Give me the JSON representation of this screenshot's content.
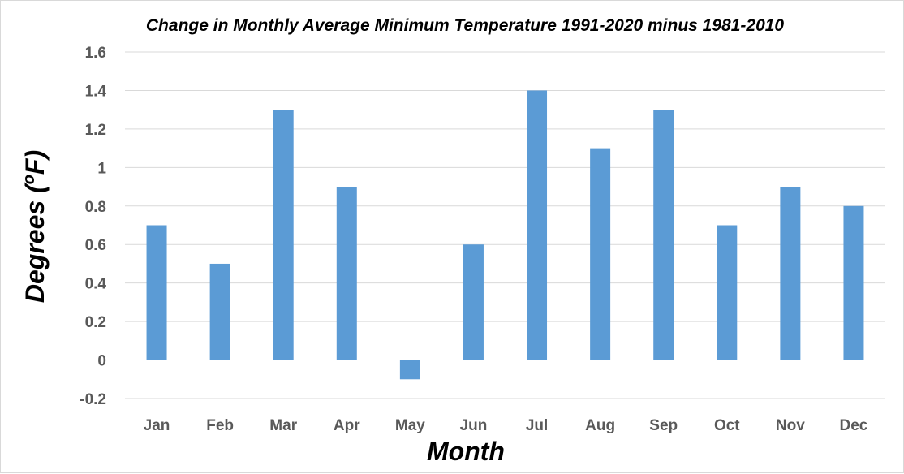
{
  "chart_data": {
    "type": "bar",
    "title": "Change in Monthly Average Minimum Temperature 1991-2020 minus 1981-2010",
    "xlabel": "Month",
    "ylabel_main": "Degrees (",
    "ylabel_sup": "o",
    "ylabel_end": "F)",
    "categories": [
      "Jan",
      "Feb",
      "Mar",
      "Apr",
      "May",
      "Jun",
      "Jul",
      "Aug",
      "Sep",
      "Oct",
      "Nov",
      "Dec"
    ],
    "values": [
      0.7,
      0.5,
      1.3,
      0.9,
      -0.1,
      0.6,
      1.4,
      1.1,
      1.3,
      0.7,
      0.9,
      0.8
    ],
    "ylim": [
      -0.2,
      1.6
    ],
    "yticks": [
      "-0.2",
      "0",
      "0.2",
      "0.4",
      "0.6",
      "0.8",
      "1",
      "1.2",
      "1.4",
      "1.6"
    ],
    "grid": true,
    "legend": "none",
    "colors": {
      "bar": "#5b9bd5",
      "grid": "#d9d9d9",
      "tick_text": "#595959"
    }
  }
}
